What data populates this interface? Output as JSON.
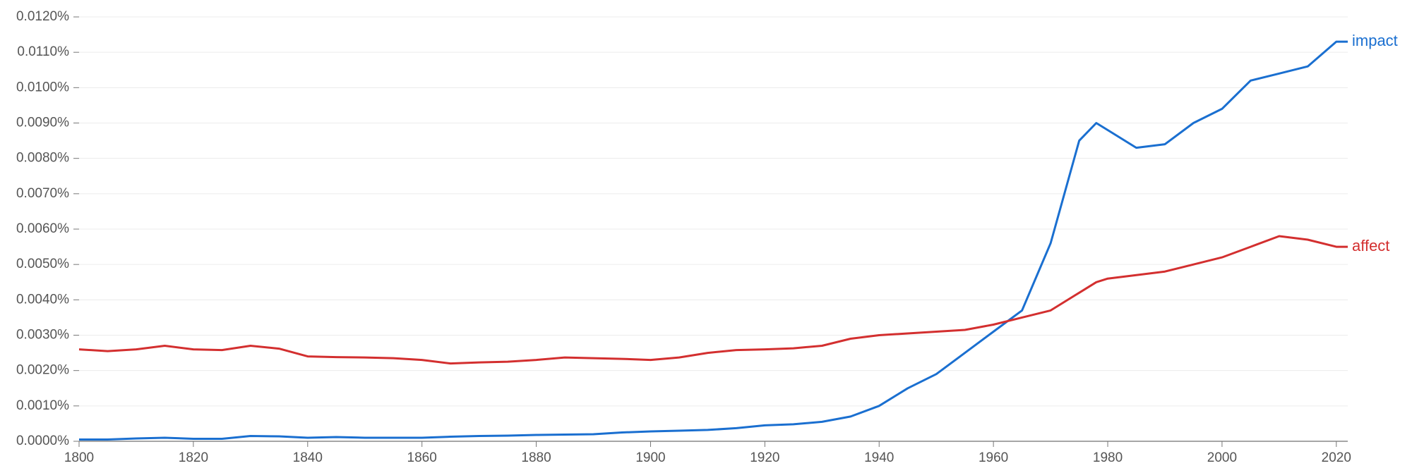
{
  "chart_data": {
    "type": "line",
    "x": [
      1800,
      1805,
      1810,
      1815,
      1820,
      1825,
      1830,
      1835,
      1840,
      1845,
      1850,
      1855,
      1860,
      1865,
      1870,
      1875,
      1880,
      1885,
      1890,
      1895,
      1900,
      1905,
      1910,
      1915,
      1920,
      1925,
      1930,
      1935,
      1940,
      1945,
      1950,
      1955,
      1960,
      1965,
      1970,
      1975,
      1978,
      1980,
      1985,
      1990,
      1995,
      2000,
      2005,
      2010,
      2015,
      2020,
      2022
    ],
    "series": [
      {
        "name": "impact",
        "color": "#1a6fd0",
        "values": [
          5e-05,
          5e-05,
          8e-05,
          0.0001,
          7e-05,
          7e-05,
          0.00015,
          0.00014,
          0.0001,
          0.00012,
          0.0001,
          0.0001,
          0.0001,
          0.00013,
          0.00015,
          0.00016,
          0.00018,
          0.00019,
          0.0002,
          0.00025,
          0.00028,
          0.0003,
          0.00032,
          0.00037,
          0.00045,
          0.00048,
          0.00055,
          0.0007,
          0.001,
          0.0015,
          0.0019,
          0.0025,
          0.0031,
          0.0037,
          0.0056,
          0.0085,
          0.009,
          0.0088,
          0.0083,
          0.0084,
          0.009,
          0.0094,
          0.0102,
          0.0104,
          0.0106,
          0.0113,
          0.0113
        ]
      },
      {
        "name": "affect",
        "color": "#d32f2f",
        "values": [
          0.0026,
          0.00255,
          0.0026,
          0.0027,
          0.0026,
          0.00258,
          0.0027,
          0.00262,
          0.0024,
          0.00238,
          0.00237,
          0.00235,
          0.0023,
          0.0022,
          0.00223,
          0.00225,
          0.0023,
          0.00237,
          0.00235,
          0.00233,
          0.0023,
          0.00237,
          0.0025,
          0.00258,
          0.0026,
          0.00263,
          0.0027,
          0.0029,
          0.003,
          0.00305,
          0.0031,
          0.00315,
          0.0033,
          0.0035,
          0.0037,
          0.0042,
          0.0045,
          0.0046,
          0.0047,
          0.0048,
          0.005,
          0.0052,
          0.0055,
          0.0058,
          0.0057,
          0.0055,
          0.0055
        ]
      }
    ],
    "xlim": [
      1800,
      2022
    ],
    "xticks": [
      1800,
      1820,
      1840,
      1860,
      1880,
      1900,
      1920,
      1940,
      1960,
      1980,
      2000,
      2020
    ],
    "ylim": [
      0,
      0.012
    ],
    "yticks": [
      {
        "value": 0,
        "label": "0.0000%"
      },
      {
        "value": 0.001,
        "label": "0.0010%"
      },
      {
        "value": 0.002,
        "label": "0.0020%"
      },
      {
        "value": 0.003,
        "label": "0.0030%"
      },
      {
        "value": 0.004,
        "label": "0.0040%"
      },
      {
        "value": 0.005,
        "label": "0.0050%"
      },
      {
        "value": 0.006,
        "label": "0.0060%"
      },
      {
        "value": 0.007,
        "label": "0.0070%"
      },
      {
        "value": 0.008,
        "label": "0.0080%"
      },
      {
        "value": 0.009,
        "label": "0.0090%"
      },
      {
        "value": 0.01,
        "label": "0.0100%"
      },
      {
        "value": 0.011,
        "label": "0.0110%"
      },
      {
        "value": 0.012,
        "label": "0.0120%"
      }
    ],
    "grid": true
  }
}
